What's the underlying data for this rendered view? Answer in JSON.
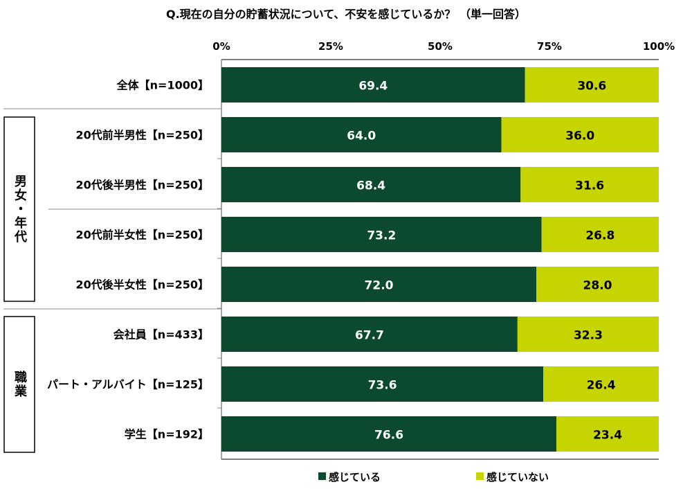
{
  "chart_data": {
    "type": "bar",
    "stacked": true,
    "orientation": "horizontal",
    "title": "Q.現在の自分の貯蓄状況について、不安を感じているか？ （単一回答）",
    "xlim": [
      0,
      100
    ],
    "x_ticks": [
      "0%",
      "25%",
      "50%",
      "75%",
      "100%"
    ],
    "categories": [
      "全体【n=1000】",
      "20代前半男性【n=250】",
      "20代後半男性【n=250】",
      "20代前半女性【n=250】",
      "20代後半女性【n=250】",
      "会社員【n=433】",
      "パート・アルバイト【n=125】",
      "学生【n=192】"
    ],
    "groups": [
      {
        "label": "男女・年代",
        "categories": [
          "20代前半男性【n=250】",
          "20代後半男性【n=250】",
          "20代前半女性【n=250】",
          "20代後半女性【n=250】"
        ]
      },
      {
        "label": "職業",
        "categories": [
          "会社員【n=433】",
          "パート・アルバイト【n=125】",
          "学生【n=192】"
        ]
      }
    ],
    "series": [
      {
        "name": "感じている",
        "color": "#0c4a30",
        "values": [
          69.4,
          64.0,
          68.4,
          73.2,
          72.0,
          67.7,
          73.6,
          76.6
        ]
      },
      {
        "name": "感じていない",
        "color": "#c6d400",
        "values": [
          30.6,
          36.0,
          31.6,
          26.8,
          28.0,
          32.3,
          26.4,
          23.4
        ]
      }
    ],
    "legend": "bottom",
    "grid": false
  }
}
